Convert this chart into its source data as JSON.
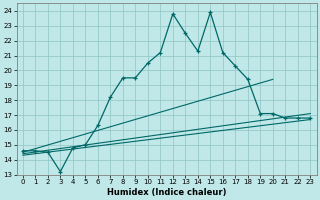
{
  "title": "",
  "xlabel": "Humidex (Indice chaleur)",
  "bg_color": "#c0e8e8",
  "line_color": "#006868",
  "xlim": [
    -0.5,
    23.5
  ],
  "ylim": [
    13,
    24.5
  ],
  "xticks": [
    0,
    1,
    2,
    3,
    4,
    5,
    6,
    7,
    8,
    9,
    10,
    11,
    12,
    13,
    14,
    15,
    16,
    17,
    18,
    19,
    20,
    21,
    22,
    23
  ],
  "yticks": [
    13,
    14,
    15,
    16,
    17,
    18,
    19,
    20,
    21,
    22,
    23,
    24
  ],
  "line1_x": [
    0,
    1,
    2,
    3,
    4,
    5,
    6,
    7,
    8,
    9,
    10,
    11,
    12,
    13,
    14,
    15,
    16,
    17,
    18,
    19,
    20,
    21,
    22,
    23
  ],
  "line1_y": [
    14.6,
    14.6,
    14.5,
    13.2,
    14.8,
    15.0,
    16.3,
    18.2,
    19.5,
    19.5,
    20.5,
    21.2,
    23.8,
    22.5,
    21.3,
    23.9,
    21.2,
    20.3,
    19.4,
    17.1,
    17.1,
    16.8,
    16.8,
    16.8
  ],
  "line2_x": [
    0,
    20
  ],
  "line2_y": [
    14.5,
    19.4
  ],
  "line3_x": [
    0,
    23
  ],
  "line3_y": [
    14.4,
    17.1
  ],
  "line4_x": [
    0,
    23
  ],
  "line4_y": [
    14.3,
    16.7
  ]
}
